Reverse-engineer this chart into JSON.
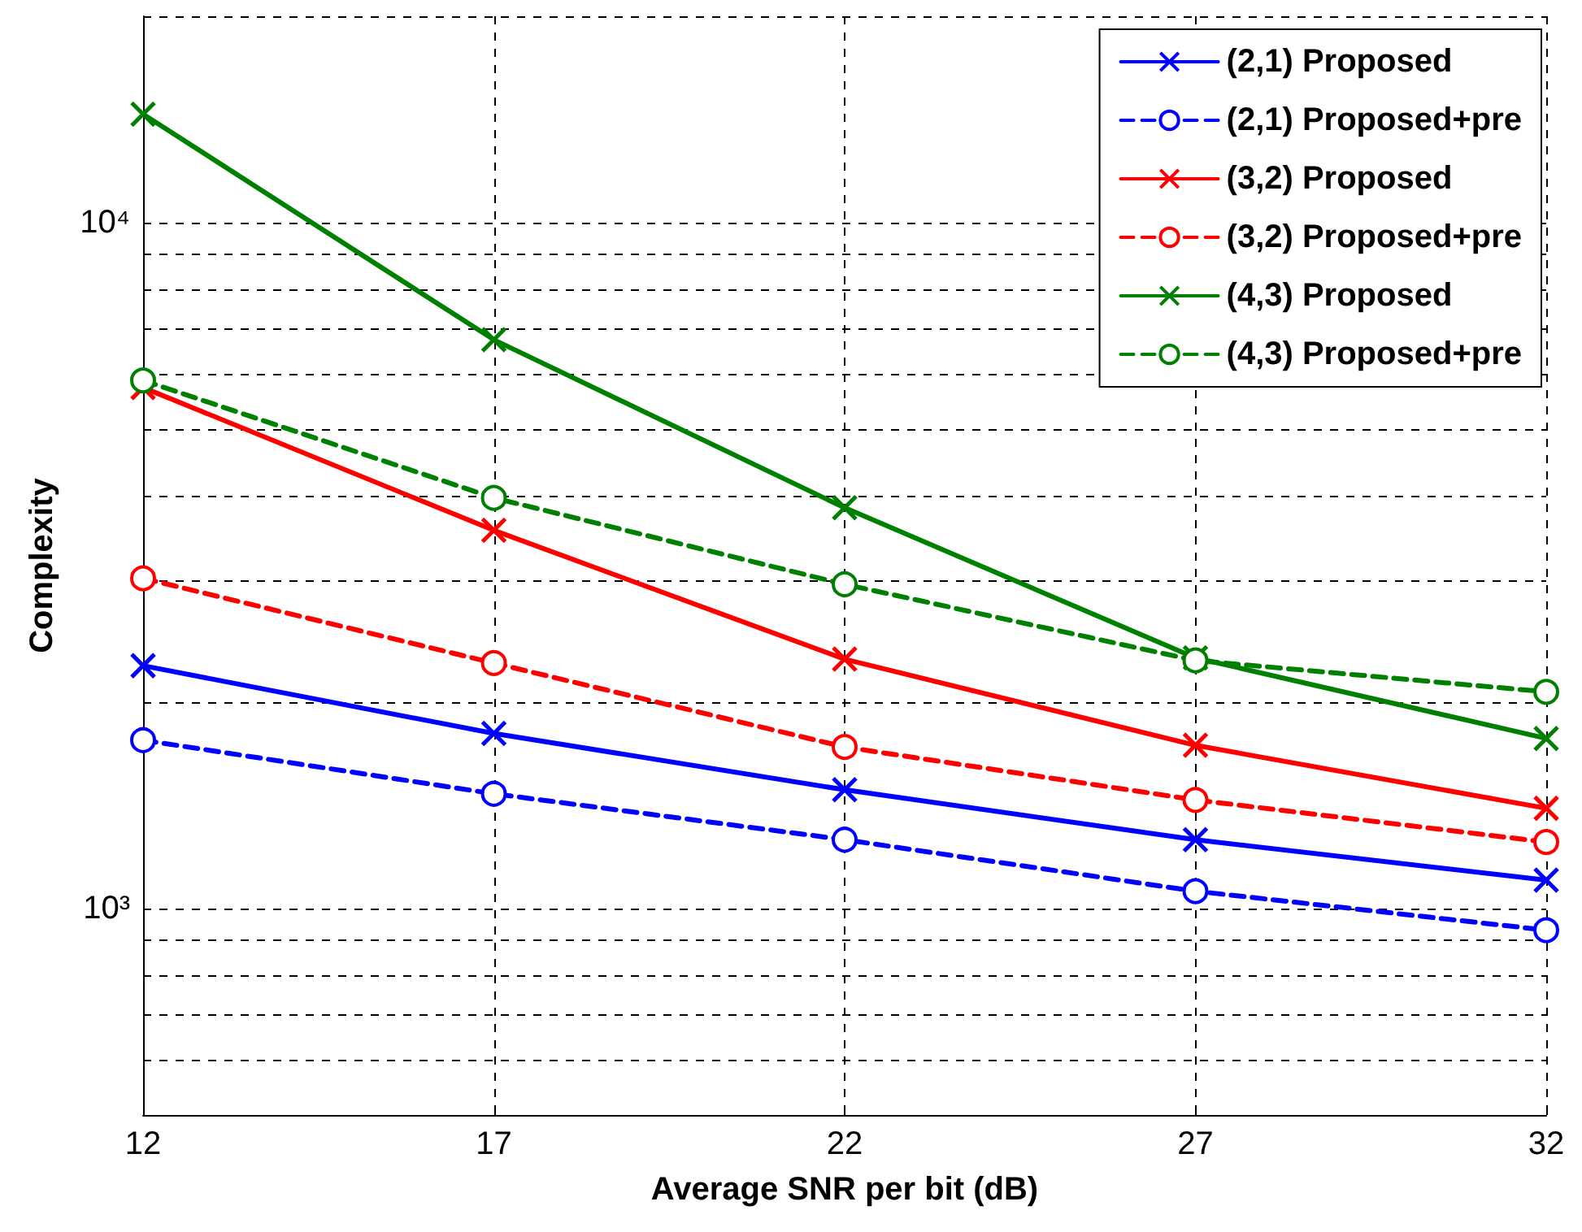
{
  "chart_data": {
    "type": "line",
    "xlabel": "Average SNR per bit (dB)",
    "ylabel": "Complexity",
    "x": [
      12,
      17,
      22,
      27,
      32
    ],
    "xlim": [
      12,
      32
    ],
    "xticks": [
      12,
      17,
      22,
      27,
      32
    ],
    "log": "y",
    "ylim": [
      500,
      20000
    ],
    "yticks": [
      {
        "value": 500,
        "label": null
      },
      {
        "value": 600,
        "label": null
      },
      {
        "value": 700,
        "label": null
      },
      {
        "value": 800,
        "label": null
      },
      {
        "value": 900,
        "label": null
      },
      {
        "value": 1000,
        "label": "10³"
      },
      {
        "value": 2000,
        "label": null
      },
      {
        "value": 3000,
        "label": null
      },
      {
        "value": 4000,
        "label": null
      },
      {
        "value": 5000,
        "label": null
      },
      {
        "value": 6000,
        "label": null
      },
      {
        "value": 7000,
        "label": null
      },
      {
        "value": 8000,
        "label": null
      },
      {
        "value": 9000,
        "label": null
      },
      {
        "value": 10000,
        "label": "10⁴"
      },
      {
        "value": 20000,
        "label": null
      }
    ],
    "grid": true,
    "legend": "top right",
    "series": [
      {
        "name": "(2,1) Proposed",
        "color": "#0000ff",
        "marker": "cross",
        "line_style": "solid",
        "values": [
          2260,
          1800,
          1490,
          1260,
          1100
        ]
      },
      {
        "name": "(2,1) Proposed+pre",
        "color": "#0000ff",
        "marker": "circle",
        "line_style": "dashed",
        "values": [
          1760,
          1470,
          1260,
          1060,
          930
        ]
      },
      {
        "name": "(3,2) Proposed",
        "color": "#ff0000",
        "marker": "cross",
        "line_style": "solid",
        "values": [
          5750,
          3560,
          2310,
          1730,
          1400
        ]
      },
      {
        "name": "(3,2) Proposed+pre",
        "color": "#ff0000",
        "marker": "circle",
        "line_style": "dashed",
        "values": [
          3030,
          2280,
          1720,
          1440,
          1250
        ]
      },
      {
        "name": "(4,3) Proposed",
        "color": "#008000",
        "marker": "cross",
        "line_style": "solid",
        "values": [
          14400,
          6750,
          3840,
          2320,
          1770
        ]
      },
      {
        "name": "(4,3) Proposed+pre",
        "color": "#008000",
        "marker": "circle",
        "line_style": "dashed",
        "values": [
          5890,
          3970,
          2970,
          2300,
          2070
        ]
      }
    ]
  }
}
